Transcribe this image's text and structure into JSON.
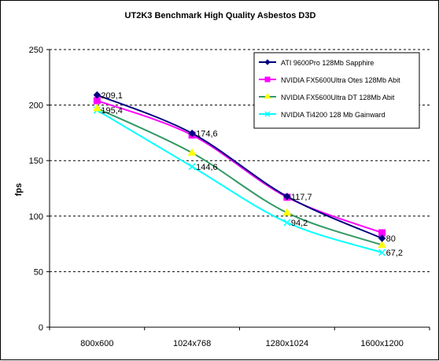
{
  "chart_data": {
    "type": "line",
    "title": "UT2K3 Benchmark High Quality Asbestos D3D",
    "ylabel": "fps",
    "xlabel": "",
    "categories": [
      "800x600",
      "1024x768",
      "1280x1024",
      "1600x1200"
    ],
    "ylim": [
      0,
      250
    ],
    "yticks": [
      "0",
      "50",
      "100",
      "150",
      "200",
      "250"
    ],
    "grid": "horizontal-dashed",
    "legend_position": "top-right",
    "plot_background": "#ffffff",
    "series": [
      {
        "name": "ATI 9600Pro 128Mb Sapphire",
        "color": "#000080",
        "marker": "diamond",
        "values": [
          209.1,
          174.6,
          117.7,
          80
        ]
      },
      {
        "name": "NVIDIA FX5600Ultra Otes 128Mb Abit",
        "color": "#ff00ff",
        "marker": "square",
        "values": [
          204,
          173,
          117,
          85
        ]
      },
      {
        "name": "NVIDIA FX5600Ultra DT 128Mb Abit",
        "color": "#339966",
        "marker": "triangle",
        "values": [
          197,
          157,
          103,
          74
        ]
      },
      {
        "name": "NVIDIA Ti4200 128 Mb Gainward",
        "color": "#00ffff",
        "marker": "x",
        "values": [
          195.4,
          144.6,
          94.2,
          67.2
        ]
      }
    ],
    "data_labels": [
      {
        "series": 0,
        "index": 0,
        "text": "209,1"
      },
      {
        "series": 0,
        "index": 1,
        "text": "174,6"
      },
      {
        "series": 0,
        "index": 2,
        "text": "117,7"
      },
      {
        "series": 0,
        "index": 3,
        "text": "80"
      },
      {
        "series": 3,
        "index": 0,
        "text": "195,4"
      },
      {
        "series": 3,
        "index": 1,
        "text": "144,6"
      },
      {
        "series": 3,
        "index": 2,
        "text": "94,2"
      },
      {
        "series": 3,
        "index": 3,
        "text": "67,2"
      }
    ]
  }
}
